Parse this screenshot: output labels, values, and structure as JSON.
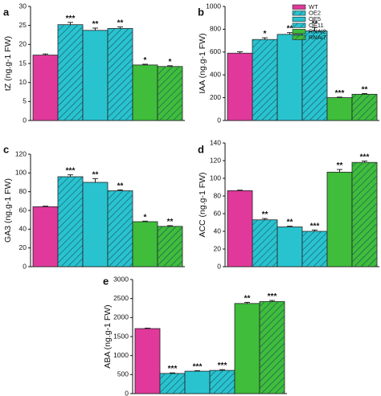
{
  "colors": {
    "WT": "#e0399b",
    "OE": "#29c3d0",
    "RNAi": "#3fbd3b",
    "hatch": "#1b4f5a"
  },
  "legend": {
    "entries": [
      {
        "label": "WT",
        "group": "WT",
        "hatch": false
      },
      {
        "label": "OE2",
        "group": "OE",
        "hatch": true
      },
      {
        "label": "OE5",
        "group": "OE",
        "hatch": false
      },
      {
        "label": "OE11",
        "group": "OE",
        "hatch": true
      },
      {
        "label": "RNAi2",
        "group": "RNAi",
        "hatch": false
      },
      {
        "label": "RNAi7",
        "group": "RNAi",
        "hatch": true
      }
    ]
  },
  "chart_data": [
    {
      "panel": "a",
      "type": "bar",
      "ylabel": "tZ (ng.g-1 FW)",
      "ylim": [
        0,
        30
      ],
      "yticks": [
        0,
        5,
        10,
        15,
        20,
        25,
        30
      ],
      "categories": [
        "WT",
        "OE2",
        "OE5",
        "OE11",
        "RNAi2",
        "RNAi7"
      ],
      "values": [
        17.2,
        25.2,
        23.7,
        24.2,
        14.6,
        14.2
      ],
      "errors": [
        0.3,
        0.6,
        0.6,
        0.4,
        0.2,
        0.2
      ],
      "significance": [
        "",
        "***",
        "**",
        "**",
        "*",
        "*"
      ]
    },
    {
      "panel": "b",
      "type": "bar",
      "ylabel": "IAA (ng.g-1 FW)",
      "ylim": [
        0,
        1000
      ],
      "yticks": [
        0,
        200,
        400,
        600,
        800,
        1000
      ],
      "categories": [
        "WT",
        "OE2",
        "OE5",
        "OE11",
        "RNAi2",
        "RNAi7"
      ],
      "values": [
        590,
        710,
        755,
        785,
        200,
        230
      ],
      "errors": [
        12,
        15,
        15,
        30,
        5,
        6
      ],
      "significance": [
        "",
        "*",
        "**",
        "**",
        "***",
        "**"
      ]
    },
    {
      "panel": "c",
      "type": "bar",
      "ylabel": "GA3 (ng.g-1 FW)",
      "ylim": [
        0,
        120
      ],
      "yticks": [
        0,
        20,
        40,
        60,
        80,
        100,
        120
      ],
      "categories": [
        "WT",
        "OE2",
        "OE5",
        "OE11",
        "RNAi2",
        "RNAi7"
      ],
      "values": [
        64,
        96,
        90,
        81,
        48,
        43
      ],
      "errors": [
        0.6,
        2,
        4,
        1,
        0.6,
        0.8
      ],
      "significance": [
        "",
        "***",
        "**",
        "**",
        "*",
        "**"
      ]
    },
    {
      "panel": "d",
      "type": "bar",
      "ylabel": "ACC (ng.g-1 FW)",
      "ylim": [
        0,
        140
      ],
      "yticks": [
        0,
        20,
        40,
        60,
        80,
        100,
        120,
        140
      ],
      "categories": [
        "WT",
        "OE2",
        "OE5",
        "OE11",
        "RNAi2",
        "RNAi7"
      ],
      "values": [
        86,
        53,
        45,
        40,
        107,
        118
      ],
      "errors": [
        0.6,
        1.5,
        0.8,
        1.5,
        3,
        1.5
      ],
      "significance": [
        "",
        "**",
        "**",
        "***",
        "**",
        "***"
      ]
    },
    {
      "panel": "e",
      "type": "bar",
      "ylabel": "ABA (ng.g-1 FW)",
      "ylim": [
        0,
        3000
      ],
      "yticks": [
        0,
        500,
        1000,
        1500,
        2000,
        2500,
        3000
      ],
      "categories": [
        "WT",
        "OE2",
        "OE5",
        "OE11",
        "RNAi2",
        "RNAi7"
      ],
      "values": [
        1710,
        530,
        590,
        610,
        2370,
        2420
      ],
      "errors": [
        12,
        15,
        12,
        20,
        30,
        30
      ],
      "significance": [
        "",
        "***",
        "***",
        "***",
        "**",
        "***"
      ]
    }
  ]
}
